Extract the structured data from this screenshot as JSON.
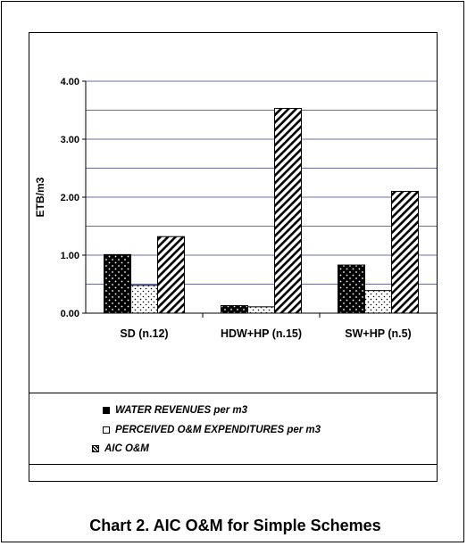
{
  "chart_data": {
    "type": "bar",
    "categories": [
      "SD (n.12)",
      "HDW+HP (n.15)",
      "SW+HP (n.5)"
    ],
    "series": [
      {
        "name": "WATER REVENUES per m3",
        "values": [
          1.01,
          0.13,
          0.83
        ],
        "color": "#000000",
        "pattern": "dotted-dark"
      },
      {
        "name": "PERCEIVED O&M EXPENDITURES per m3",
        "values": [
          0.48,
          0.11,
          0.39
        ],
        "color": "#ffffff",
        "pattern": "dotted-light"
      },
      {
        "name": "AIC O&M",
        "values": [
          1.32,
          3.53,
          2.1
        ],
        "color": "#ffffff",
        "pattern": "diagonal-hatch"
      }
    ],
    "ylabel": "ETB/m3",
    "ylim": [
      0,
      4
    ],
    "yticks": [
      "0.00",
      "1.00",
      "2.00",
      "3.00",
      "4.00"
    ],
    "gridlines": [
      0.5,
      1.0,
      1.5,
      2.0,
      2.5,
      3.0,
      3.5,
      4.0
    ],
    "grid": true,
    "legend_placement": "bottom"
  },
  "caption": "Chart 2. AIC O&M for Simple Schemes",
  "legend": [
    {
      "label": "WATER REVENUES per m3"
    },
    {
      "label": "PERCEIVED O&M EXPENDITURES per m3"
    },
    {
      "label": "AIC O&M"
    }
  ],
  "colors": {
    "gridline": "#6b6ba8",
    "axis": "#000000",
    "background": "#ffffff"
  }
}
